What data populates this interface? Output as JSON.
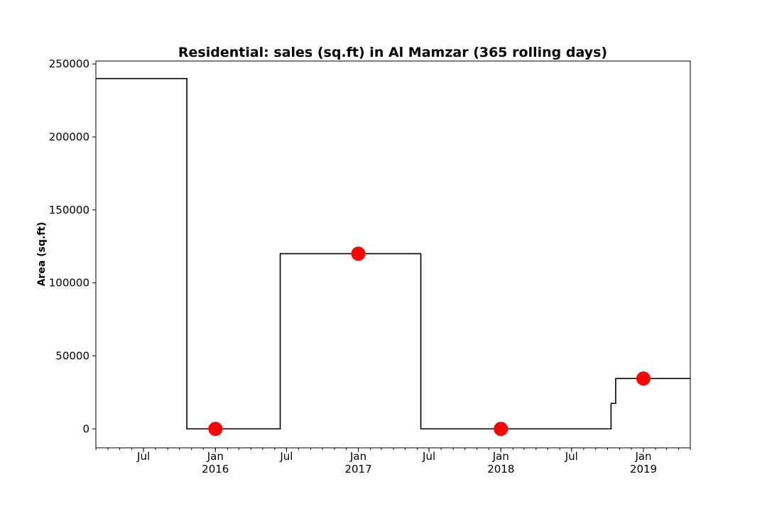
{
  "chart_data": {
    "type": "line",
    "title": "Residential: sales (sq.ft) in Al Mamzar (365 rolling days)",
    "xlabel": "",
    "ylabel": "Area (sq.ft)",
    "x_range": [
      "2015-03-01",
      "2019-05-01"
    ],
    "ylim": [
      -13000,
      252000
    ],
    "y_ticks": [
      0,
      50000,
      100000,
      150000,
      200000,
      250000
    ],
    "y_tick_labels": [
      "0",
      "50000",
      "100000",
      "150000",
      "200000",
      "250000"
    ],
    "x_major_ticks": [
      {
        "date": "2015-07-01",
        "label": "Jul",
        "sublabel": ""
      },
      {
        "date": "2016-01-01",
        "label": "Jan",
        "sublabel": "2016"
      },
      {
        "date": "2016-07-01",
        "label": "Jul",
        "sublabel": ""
      },
      {
        "date": "2017-01-01",
        "label": "Jan",
        "sublabel": "2017"
      },
      {
        "date": "2017-07-01",
        "label": "Jul",
        "sublabel": ""
      },
      {
        "date": "2018-01-01",
        "label": "Jan",
        "sublabel": "2018"
      },
      {
        "date": "2018-07-01",
        "label": "Jul",
        "sublabel": ""
      },
      {
        "date": "2019-01-01",
        "label": "Jan",
        "sublabel": "2019"
      }
    ],
    "grid": false,
    "legend": "none",
    "series": [
      {
        "style": "step",
        "color": "#000000",
        "points": [
          {
            "x": "2015-03-01",
            "y": 240000
          },
          {
            "x": "2015-10-20",
            "y": 240000
          },
          {
            "x": "2015-10-20",
            "y": 0
          },
          {
            "x": "2016-06-15",
            "y": 0
          },
          {
            "x": "2016-06-15",
            "y": 120000
          },
          {
            "x": "2017-06-10",
            "y": 120000
          },
          {
            "x": "2017-06-10",
            "y": 0
          },
          {
            "x": "2018-10-10",
            "y": 0
          },
          {
            "x": "2018-10-10",
            "y": 17500
          },
          {
            "x": "2018-10-22",
            "y": 17500
          },
          {
            "x": "2018-10-22",
            "y": 34500
          },
          {
            "x": "2019-05-01",
            "y": 34500
          }
        ]
      },
      {
        "style": "markers",
        "color": "#ff0000",
        "points": [
          {
            "x": "2016-01-01",
            "y": 0
          },
          {
            "x": "2017-01-01",
            "y": 120000
          },
          {
            "x": "2018-01-01",
            "y": 0
          },
          {
            "x": "2019-01-01",
            "y": 34500
          }
        ]
      }
    ]
  }
}
